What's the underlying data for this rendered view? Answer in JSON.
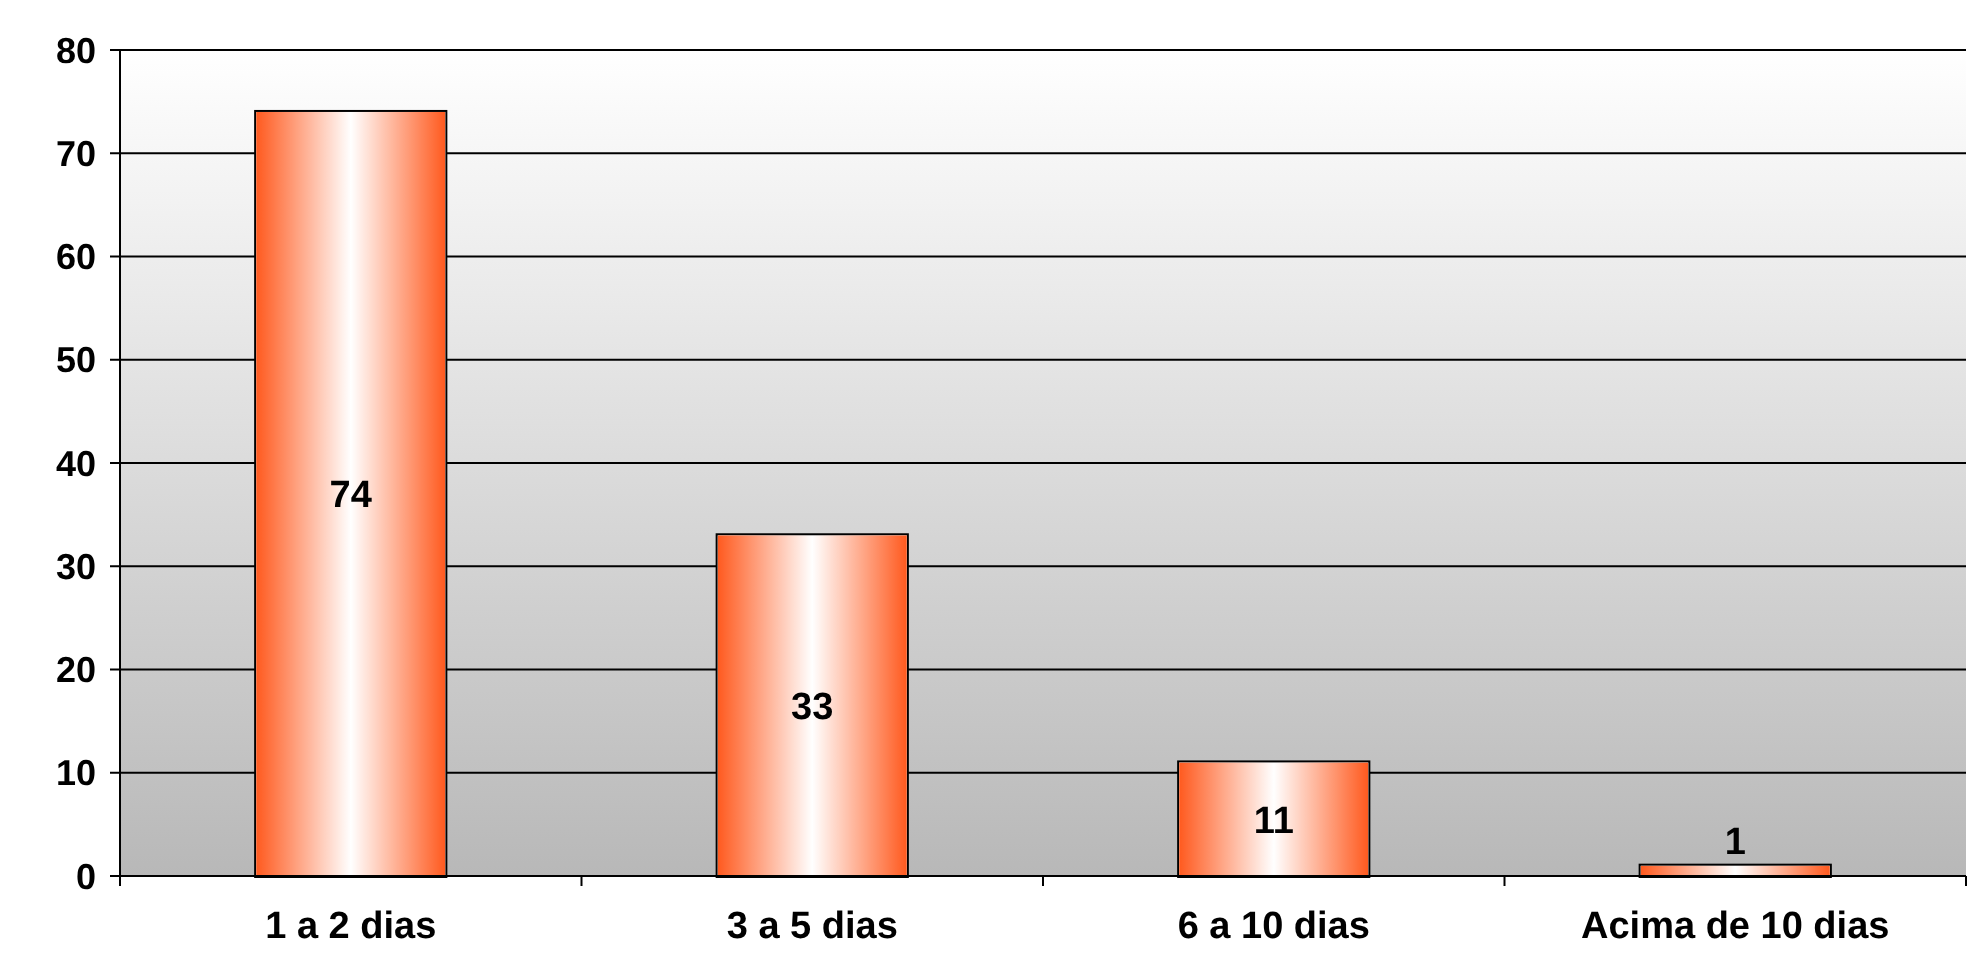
{
  "chart_data": {
    "type": "bar",
    "categories": [
      "1 a 2 dias",
      "3 a 5 dias",
      "6 a 10 dias",
      "Acima de 10 dias"
    ],
    "values": [
      74,
      33,
      11,
      1
    ],
    "color": "#ff5a1f",
    "ylim": [
      0,
      80
    ],
    "yticks": [
      0,
      10,
      20,
      30,
      40,
      50,
      60,
      70,
      80
    ],
    "grid": "y",
    "data_labels": true
  }
}
